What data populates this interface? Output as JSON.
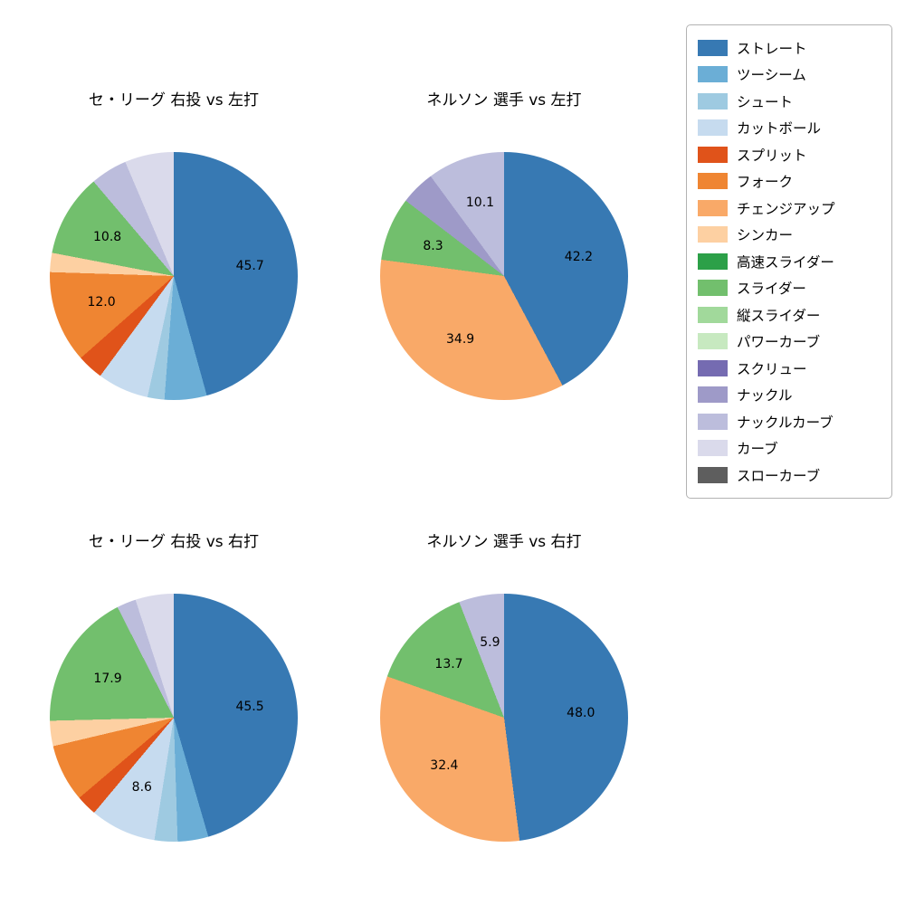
{
  "legend": {
    "entries": [
      {
        "label": "ストレート",
        "color": "#3779b3"
      },
      {
        "label": "ツーシーム",
        "color": "#6baed6"
      },
      {
        "label": "シュート",
        "color": "#9ecae1"
      },
      {
        "label": "カットボール",
        "color": "#c6dbef"
      },
      {
        "label": "スプリット",
        "color": "#e0531a"
      },
      {
        "label": "フォーク",
        "color": "#ef8532"
      },
      {
        "label": "チェンジアップ",
        "color": "#f9a968"
      },
      {
        "label": "シンカー",
        "color": "#fdd0a2"
      },
      {
        "label": "高速スライダー",
        "color": "#2ca048"
      },
      {
        "label": "スライダー",
        "color": "#72bf6d"
      },
      {
        "label": "縦スライダー",
        "color": "#a1d99b"
      },
      {
        "label": "パワーカーブ",
        "color": "#c7e9c0"
      },
      {
        "label": "スクリュー",
        "color": "#756bb1"
      },
      {
        "label": "ナックル",
        "color": "#9e9ac8"
      },
      {
        "label": "ナックルカーブ",
        "color": "#bcbddc"
      },
      {
        "label": "カーブ",
        "color": "#dadaeb"
      },
      {
        "label": "スローカーブ",
        "color": "#5e5e5e"
      }
    ]
  },
  "chart_data": [
    {
      "type": "pie",
      "title": "セ・リーグ 右投 vs 左打",
      "start_angle": "top",
      "direction": "clockwise",
      "slices": [
        {
          "label": "ストレート",
          "value": 45.7,
          "value_shown": true
        },
        {
          "label": "ツーシーム",
          "value": 5.5,
          "value_shown": false
        },
        {
          "label": "シュート",
          "value": 2.2,
          "value_shown": false
        },
        {
          "label": "カットボール",
          "value": 6.7,
          "value_shown": false
        },
        {
          "label": "スプリット",
          "value": 3.4,
          "value_shown": false
        },
        {
          "label": "フォーク",
          "value": 12.0,
          "value_shown": true
        },
        {
          "label": "シンカー",
          "value": 2.5,
          "value_shown": false
        },
        {
          "label": "スライダー",
          "value": 10.8,
          "value_shown": true
        },
        {
          "label": "ナックルカーブ",
          "value": 4.8,
          "value_shown": false
        },
        {
          "label": "カーブ",
          "value": 6.4,
          "value_shown": false
        }
      ]
    },
    {
      "type": "pie",
      "title": "ネルソン 選手 vs 左打",
      "start_angle": "top",
      "direction": "clockwise",
      "slices": [
        {
          "label": "ストレート",
          "value": 42.2,
          "value_shown": true
        },
        {
          "label": "チェンジアップ",
          "value": 34.9,
          "value_shown": true
        },
        {
          "label": "スライダー",
          "value": 8.3,
          "value_shown": true
        },
        {
          "label": "ナックル",
          "value": 4.5,
          "value_shown": false
        },
        {
          "label": "ナックルカーブ",
          "value": 10.1,
          "value_shown": true
        }
      ]
    },
    {
      "type": "pie",
      "title": "セ・リーグ 右投 vs 右打",
      "start_angle": "top",
      "direction": "clockwise",
      "slices": [
        {
          "label": "ストレート",
          "value": 45.5,
          "value_shown": true
        },
        {
          "label": "ツーシーム",
          "value": 4.0,
          "value_shown": false
        },
        {
          "label": "シュート",
          "value": 3.0,
          "value_shown": false
        },
        {
          "label": "カットボール",
          "value": 8.6,
          "value_shown": true
        },
        {
          "label": "スプリット",
          "value": 2.7,
          "value_shown": false
        },
        {
          "label": "フォーク",
          "value": 7.5,
          "value_shown": false
        },
        {
          "label": "シンカー",
          "value": 3.3,
          "value_shown": false
        },
        {
          "label": "スライダー",
          "value": 17.9,
          "value_shown": true
        },
        {
          "label": "ナックルカーブ",
          "value": 2.5,
          "value_shown": false
        },
        {
          "label": "カーブ",
          "value": 5.0,
          "value_shown": false
        }
      ]
    },
    {
      "type": "pie",
      "title": "ネルソン 選手 vs 右打",
      "start_angle": "top",
      "direction": "clockwise",
      "slices": [
        {
          "label": "ストレート",
          "value": 48.0,
          "value_shown": true
        },
        {
          "label": "チェンジアップ",
          "value": 32.4,
          "value_shown": true
        },
        {
          "label": "スライダー",
          "value": 13.7,
          "value_shown": true
        },
        {
          "label": "ナックルカーブ",
          "value": 5.9,
          "value_shown": true
        }
      ]
    }
  ]
}
